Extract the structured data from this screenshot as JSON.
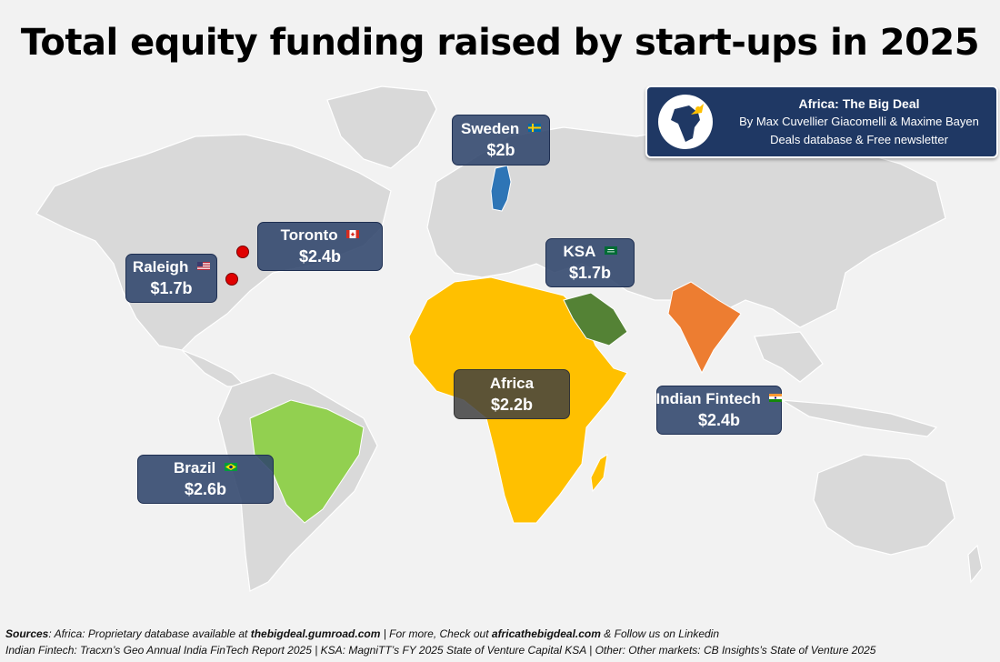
{
  "title": "Total equity funding raised by start-ups in 2025",
  "banner": {
    "name": "Africa: The Big Deal",
    "authors": "By Max Cuvellier Giacomelli & Maxime Bayen",
    "tagline": "Deals database & Free newsletter"
  },
  "markets": [
    {
      "name": "Sweden",
      "value": "$2b",
      "flag": "sweden-flag",
      "highlight": "#2e75b6"
    },
    {
      "name": "Toronto",
      "value": "$2.4b",
      "flag": "canada-flag",
      "highlight": "#e00000"
    },
    {
      "name": "Raleigh",
      "value": "$1.7b",
      "flag": "usa-flag",
      "highlight": "#e00000"
    },
    {
      "name": "KSA",
      "value": "$1.7b",
      "flag": "saudi-flag",
      "highlight": "#548235"
    },
    {
      "name": "Africa",
      "value": "$2.2b",
      "flag": "",
      "highlight": "#ffc000"
    },
    {
      "name": "Indian Fintech",
      "value": "$2.4b",
      "flag": "india-flag",
      "highlight": "#ed7d31"
    },
    {
      "name": "Brazil",
      "value": "$2.6b",
      "flag": "brazil-flag",
      "highlight": "#92d050"
    }
  ],
  "sources": {
    "label": "Sources",
    "line1_a": ": Africa: Proprietary database available at ",
    "line1_b": "thebigdeal.gumroad.com",
    "line1_c": " | For more, Check out ",
    "line1_d": "africathebigdeal.com",
    "line1_e": " & Follow us on Linkedin",
    "line2": "Indian Fintech: Tracxn’s Geo Annual India FinTech Report 2025 | KSA: MagniTT’s FY 2025 State of Venture Capital KSA | Other: Other markets: CB Insights’s State of Venture 2025"
  }
}
